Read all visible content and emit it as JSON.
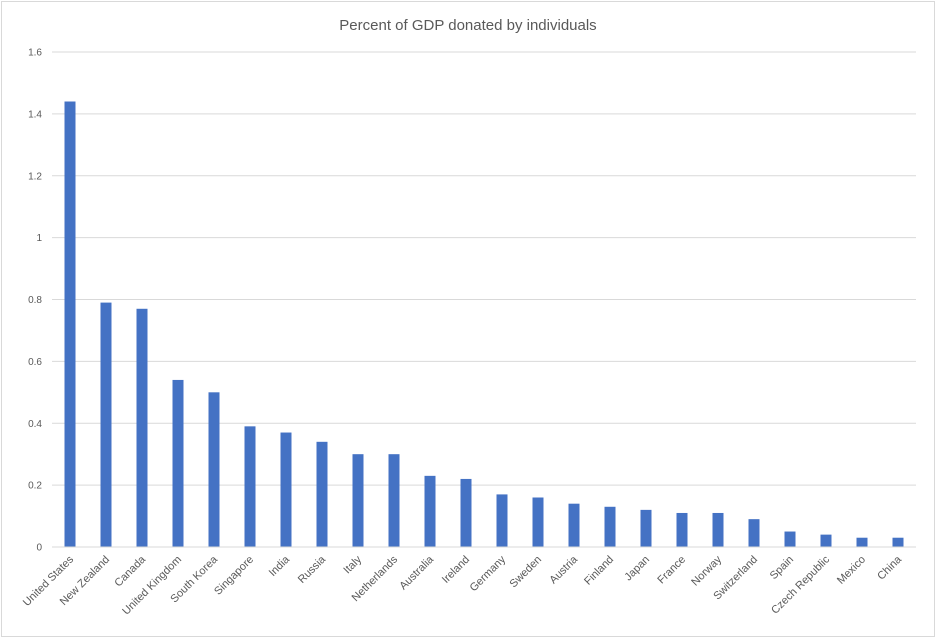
{
  "chart_data": {
    "type": "bar",
    "title": "Percent of GDP donated by individuals",
    "xlabel": "",
    "ylabel": "",
    "ylim": [
      0,
      1.6
    ],
    "yticks": [
      "0",
      "0.2",
      "0.4",
      "0.6",
      "0.8",
      "1",
      "1.2",
      "1.4",
      "1.6"
    ],
    "grid": true,
    "legend": "none",
    "bar_color": "#4472c4",
    "categories": [
      "United States",
      "New Zealand",
      "Canada",
      "United Kingdom",
      "South Korea",
      "Singapore",
      "India",
      "Russia",
      "Italy",
      "Netherlands",
      "Australia",
      "Ireland",
      "Germany",
      "Sweden",
      "Austria",
      "Finland",
      "Japan",
      "France",
      "Norway",
      "Switzerland",
      "Spain",
      "Czech Republic",
      "Mexico",
      "China"
    ],
    "values": [
      1.44,
      0.79,
      0.77,
      0.54,
      0.5,
      0.39,
      0.37,
      0.34,
      0.3,
      0.3,
      0.23,
      0.22,
      0.17,
      0.16,
      0.14,
      0.13,
      0.12,
      0.11,
      0.11,
      0.09,
      0.05,
      0.04,
      0.03,
      0.03
    ]
  }
}
